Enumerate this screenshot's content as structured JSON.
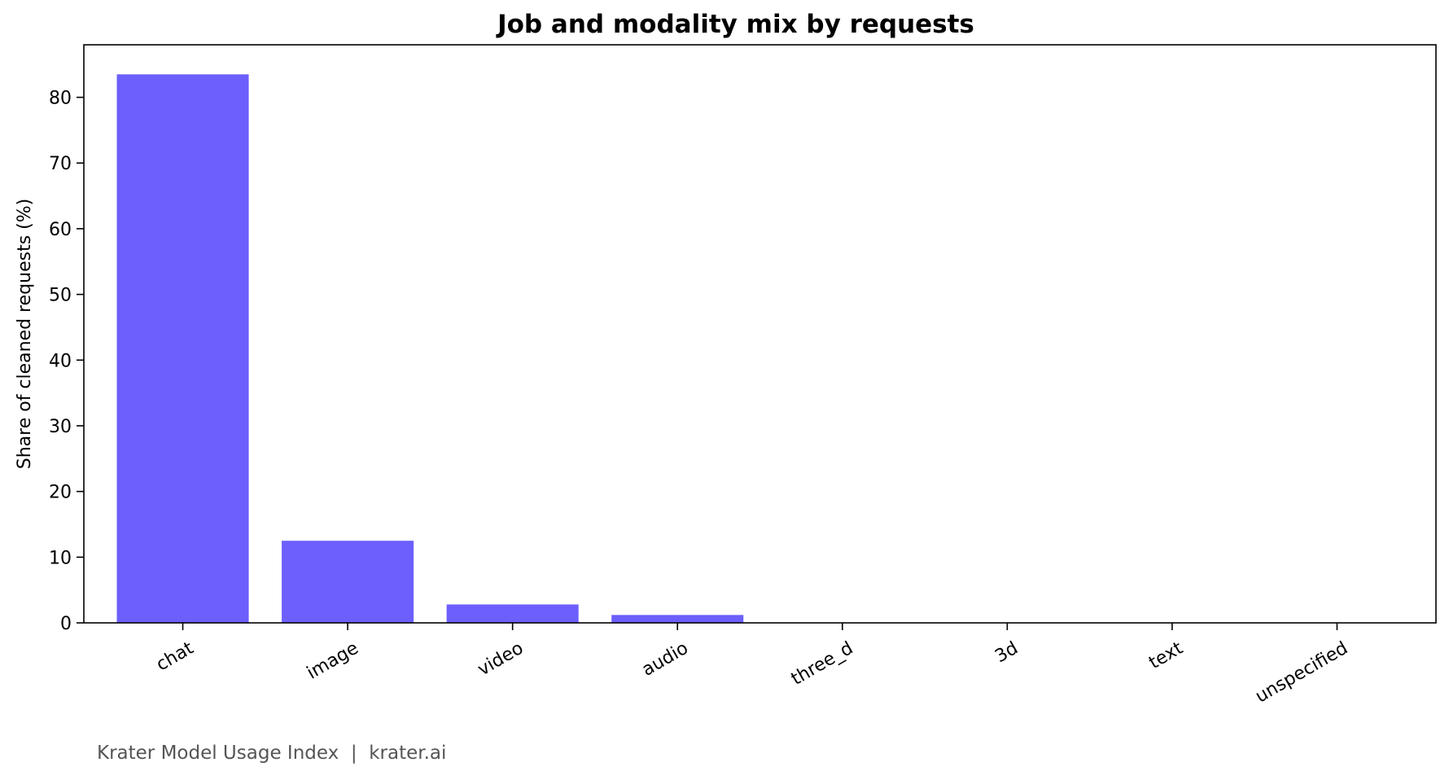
{
  "chart_data": {
    "type": "bar",
    "title": "Job and modality mix by requests",
    "xlabel": "",
    "ylabel": "Share of cleaned requests (%)",
    "categories": [
      "chat",
      "image",
      "video",
      "audio",
      "three_d",
      "3d",
      "text",
      "unspecified"
    ],
    "values": [
      83.5,
      12.5,
      2.8,
      1.2,
      0.0,
      0.0,
      0.0,
      0.0
    ],
    "ylim": [
      0,
      88
    ],
    "yticks": [
      0,
      10,
      20,
      30,
      40,
      50,
      60,
      70,
      80
    ],
    "bar_color": "#6c5ffc",
    "grid": false,
    "legend": "none"
  },
  "footer": {
    "text": "Krater Model Usage Index  |  krater.ai"
  }
}
